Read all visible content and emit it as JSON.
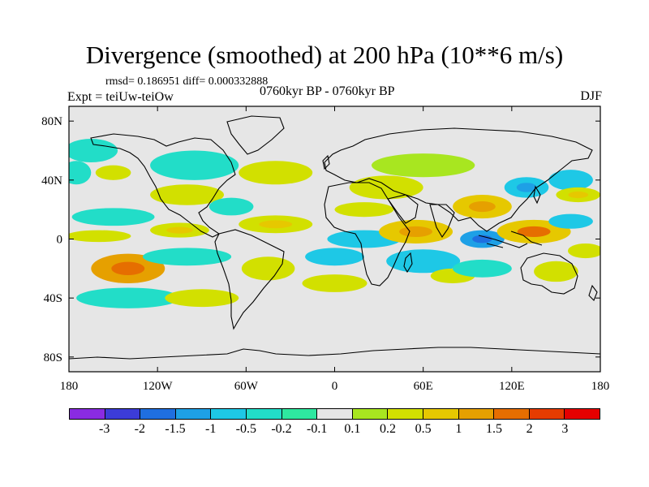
{
  "title": "Divergence (smoothed) at 200 hPa (10**6 m/s)",
  "stats": "rmsd= 0.186951 diff= 0.000332888",
  "experiment": "Expt = teiUw-teiOw",
  "period": "0760kyr BP - 0760kyr BP",
  "season": "DJF",
  "axes": {
    "lon_ticks": [
      "180",
      "120W",
      "60W",
      "0",
      "60E",
      "120E",
      "180"
    ],
    "lat_ticks": [
      "80N",
      "40N",
      "0",
      "40S",
      "80S"
    ],
    "lon_values": [
      -180,
      -120,
      -60,
      0,
      60,
      120,
      180
    ],
    "lat_values": [
      80,
      40,
      0,
      -40,
      -80
    ],
    "lon_range": [
      -180,
      180
    ],
    "lat_range": [
      -90,
      90
    ]
  },
  "colorbar": {
    "labels": [
      "-3",
      "-2",
      "-1.5",
      "-1",
      "-0.5",
      "-0.2",
      "-0.1",
      "0.1",
      "0.2",
      "0.5",
      "1",
      "1.5",
      "2",
      "3"
    ],
    "colors": [
      "#8a2be2",
      "#3c3cd8",
      "#1f6fe0",
      "#1ea0e6",
      "#1ec8e6",
      "#22ddc8",
      "#2ee8a0",
      "#e6e6e6",
      "#a8e620",
      "#d2e000",
      "#e6c800",
      "#e6a000",
      "#e66e00",
      "#e63c00",
      "#e60000"
    ]
  },
  "field_blobs": [
    {
      "lon": -165,
      "lat": 60,
      "rx": 18,
      "ry": 8,
      "v": -0.3
    },
    {
      "lon": -175,
      "lat": 45,
      "rx": 10,
      "ry": 8,
      "v": -0.3
    },
    {
      "lon": -150,
      "lat": 45,
      "rx": 12,
      "ry": 5,
      "v": 0.3
    },
    {
      "lon": -95,
      "lat": 50,
      "rx": 30,
      "ry": 10,
      "v": -0.3
    },
    {
      "lon": -40,
      "lat": 45,
      "rx": 25,
      "ry": 8,
      "v": 0.3
    },
    {
      "lon": -100,
      "lat": 30,
      "rx": 25,
      "ry": 7,
      "v": 0.3
    },
    {
      "lon": -70,
      "lat": 22,
      "rx": 15,
      "ry": 6,
      "v": -0.3
    },
    {
      "lon": -150,
      "lat": 15,
      "rx": 28,
      "ry": 6,
      "v": -0.3
    },
    {
      "lon": -160,
      "lat": 2,
      "rx": 22,
      "ry": 4,
      "v": 0.3
    },
    {
      "lon": -105,
      "lat": 6,
      "rx": 20,
      "ry": 5,
      "v": 0.5
    },
    {
      "lon": -40,
      "lat": 10,
      "rx": 25,
      "ry": 6,
      "v": 0.5
    },
    {
      "lon": 20,
      "lat": 20,
      "rx": 20,
      "ry": 5,
      "v": 0.3
    },
    {
      "lon": 20,
      "lat": 0,
      "rx": 25,
      "ry": 6,
      "v": -0.5
    },
    {
      "lon": 55,
      "lat": 5,
      "rx": 25,
      "ry": 8,
      "v": 0.8
    },
    {
      "lon": 35,
      "lat": 35,
      "rx": 25,
      "ry": 8,
      "v": 0.3
    },
    {
      "lon": 60,
      "lat": 50,
      "rx": 35,
      "ry": 8,
      "v": 0.2
    },
    {
      "lon": 100,
      "lat": 22,
      "rx": 20,
      "ry": 8,
      "v": 0.8
    },
    {
      "lon": 130,
      "lat": 35,
      "rx": 15,
      "ry": 7,
      "v": -0.8
    },
    {
      "lon": 160,
      "lat": 40,
      "rx": 15,
      "ry": 7,
      "v": -0.5
    },
    {
      "lon": 100,
      "lat": 0,
      "rx": 15,
      "ry": 6,
      "v": -1.0
    },
    {
      "lon": 135,
      "lat": 5,
      "rx": 25,
      "ry": 8,
      "v": 1.0
    },
    {
      "lon": 160,
      "lat": 12,
      "rx": 15,
      "ry": 5,
      "v": -0.5
    },
    {
      "lon": 165,
      "lat": 30,
      "rx": 15,
      "ry": 5,
      "v": 0.5
    },
    {
      "lon": -140,
      "lat": -20,
      "rx": 25,
      "ry": 10,
      "v": 1.2
    },
    {
      "lon": -100,
      "lat": -12,
      "rx": 30,
      "ry": 6,
      "v": -0.3
    },
    {
      "lon": -140,
      "lat": -40,
      "rx": 35,
      "ry": 7,
      "v": -0.3
    },
    {
      "lon": -90,
      "lat": -40,
      "rx": 25,
      "ry": 6,
      "v": 0.3
    },
    {
      "lon": -45,
      "lat": -20,
      "rx": 18,
      "ry": 8,
      "v": 0.3
    },
    {
      "lon": 0,
      "lat": -12,
      "rx": 20,
      "ry": 6,
      "v": -0.5
    },
    {
      "lon": 0,
      "lat": -30,
      "rx": 22,
      "ry": 6,
      "v": 0.3
    },
    {
      "lon": 60,
      "lat": -15,
      "rx": 25,
      "ry": 8,
      "v": -0.5
    },
    {
      "lon": 80,
      "lat": -25,
      "rx": 15,
      "ry": 5,
      "v": 0.3
    },
    {
      "lon": 100,
      "lat": -20,
      "rx": 20,
      "ry": 6,
      "v": -0.3
    },
    {
      "lon": 150,
      "lat": -22,
      "rx": 15,
      "ry": 7,
      "v": 0.3
    },
    {
      "lon": 170,
      "lat": -8,
      "rx": 12,
      "ry": 5,
      "v": 0.3
    }
  ]
}
